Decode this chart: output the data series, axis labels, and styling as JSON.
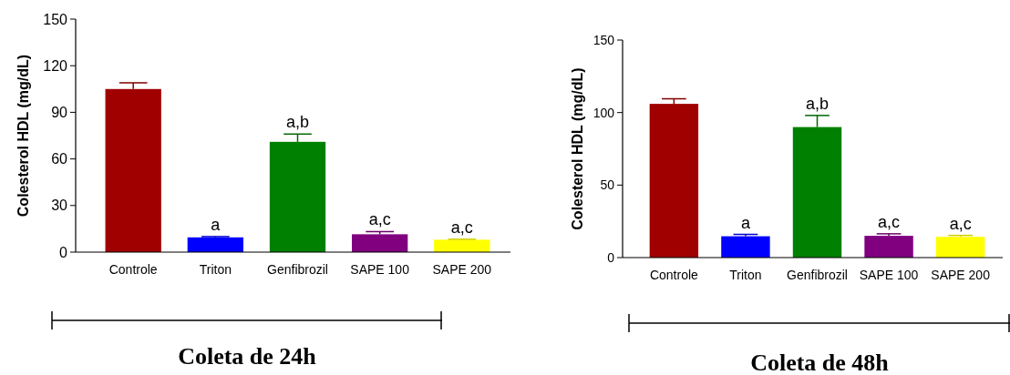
{
  "chart_data": [
    {
      "type": "bar",
      "ylabel": "Colesterol HDL (mg/dL)",
      "xlabel": "Coleta de 24h",
      "categories": [
        "Controle",
        "Triton",
        "Genfibrozil",
        "SAPE 100",
        "SAPE 200"
      ],
      "values": [
        105,
        9.5,
        71,
        11.5,
        8
      ],
      "errors": [
        4,
        0.5,
        5,
        1.7,
        0.3
      ],
      "colors": [
        "#a00000",
        "#0000ff",
        "#008000",
        "#800080",
        "#ffff00"
      ],
      "ylim": [
        0,
        150
      ],
      "yticks": [
        0,
        30,
        60,
        90,
        120,
        150
      ],
      "grid": false,
      "annotations": [
        {
          "text": "a",
          "x": "Triton",
          "y": 10
        },
        {
          "text": "a,b",
          "x": "Genfibrozil",
          "y": 76
        },
        {
          "text": "a,c",
          "x": "SAPE 100",
          "y": 13.2
        },
        {
          "text": "a,c",
          "x": "SAPE 200",
          "y": 8.3
        }
      ]
    },
    {
      "type": "bar",
      "ylabel": "Colesterol HDL (mg/dL)",
      "xlabel": "Coleta de 48h",
      "categories": [
        "Controle",
        "Triton",
        "Genfibrozil",
        "SAPE 100",
        "SAPE 200"
      ],
      "values": [
        106,
        14.7,
        90,
        15,
        14.3
      ],
      "errors": [
        3.5,
        1.3,
        8,
        1.4,
        1
      ],
      "colors": [
        "#a00000",
        "#0000ff",
        "#008000",
        "#800080",
        "#ffff00"
      ],
      "ylim": [
        0,
        150
      ],
      "yticks": [
        0,
        50,
        100,
        150
      ],
      "grid": false,
      "annotations": [
        {
          "text": "a",
          "x": "Triton",
          "y": 16
        },
        {
          "text": "a,b",
          "x": "Genfibrozil",
          "y": 98
        },
        {
          "text": "a,c",
          "x": "SAPE 100",
          "y": 16.4
        },
        {
          "text": "a,c",
          "x": "SAPE 200",
          "y": 15.1
        }
      ]
    }
  ]
}
